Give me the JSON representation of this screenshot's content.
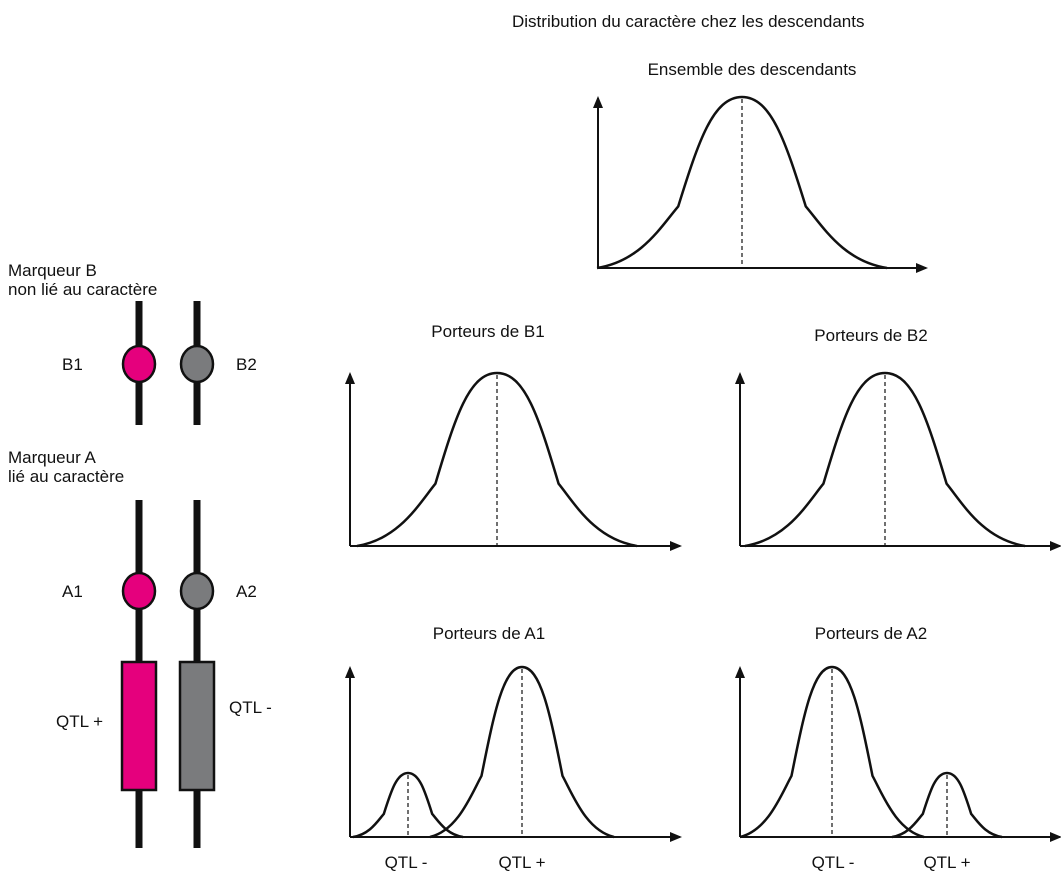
{
  "colors": {
    "magenta": "#E5007D",
    "grey": "#7A7B7D",
    "line": "#111111"
  },
  "header": {
    "title": "Distribution du caractère chez les descendants"
  },
  "markers": {
    "b": {
      "title_line1": "Marqueur B",
      "title_line2": "non lié au caractère",
      "allele1": "B1",
      "allele2": "B2"
    },
    "a": {
      "title_line1": "Marqueur A",
      "title_line2": "lié au caractère",
      "allele1": "A1",
      "allele2": "A2",
      "qtl_left": "QTL +",
      "qtl_right": "QTL -"
    }
  },
  "panels": {
    "all": {
      "title": "Ensemble des descendants"
    },
    "b1": {
      "title": "Porteurs de B1"
    },
    "b2": {
      "title": "Porteurs de B2"
    },
    "a1": {
      "title": "Porteurs de A1",
      "peak_small": "QTL -",
      "peak_large": "QTL +"
    },
    "a2": {
      "title": "Porteurs de A2",
      "peak_large": "QTL -",
      "peak_small": "QTL +"
    }
  }
}
